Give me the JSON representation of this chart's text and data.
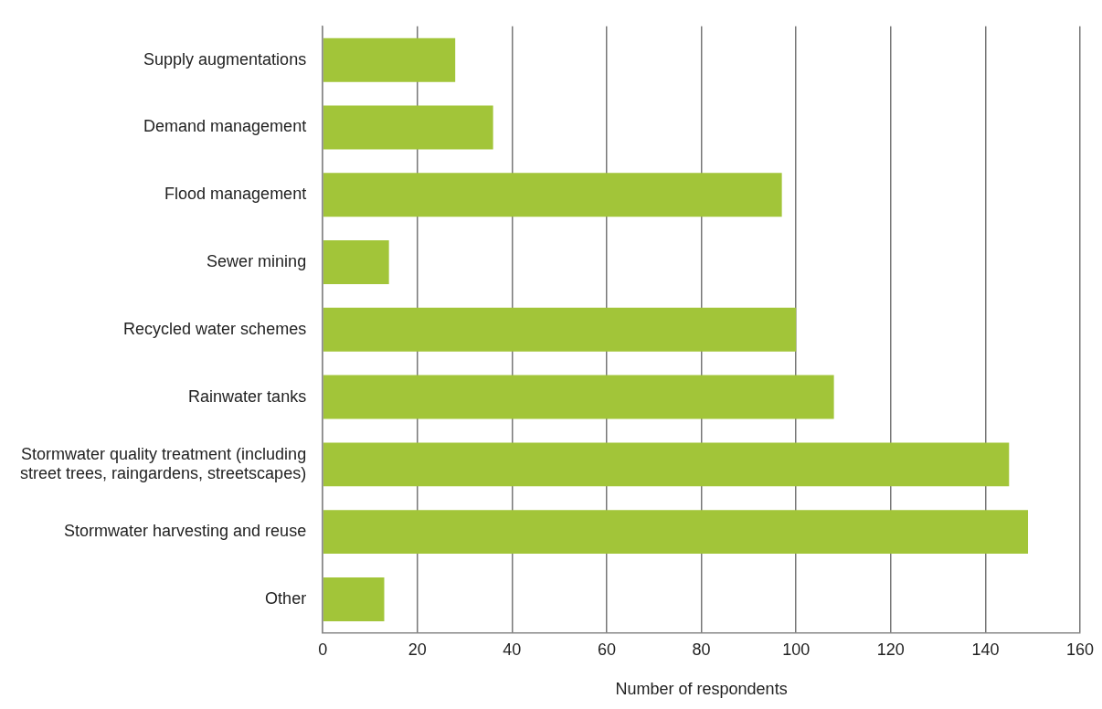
{
  "chart_data": {
    "type": "bar",
    "orientation": "horizontal",
    "xlabel": "Number of respondents",
    "categories": [
      "Supply augmentations",
      "Demand management",
      "Flood management",
      "Sewer mining",
      "Recycled water schemes",
      "Rainwater tanks",
      "Stormwater quality treatment (including street trees, raingardens, streetscapes)",
      "Stormwater harvesting and reuse",
      "Other"
    ],
    "values": [
      28,
      36,
      97,
      14,
      100,
      108,
      145,
      149,
      13
    ],
    "color": "#a2c539",
    "xlim": [
      0,
      160
    ],
    "xticks": [
      0,
      20,
      40,
      60,
      80,
      100,
      120,
      140,
      160
    ],
    "grid": "x",
    "legend": false
  }
}
